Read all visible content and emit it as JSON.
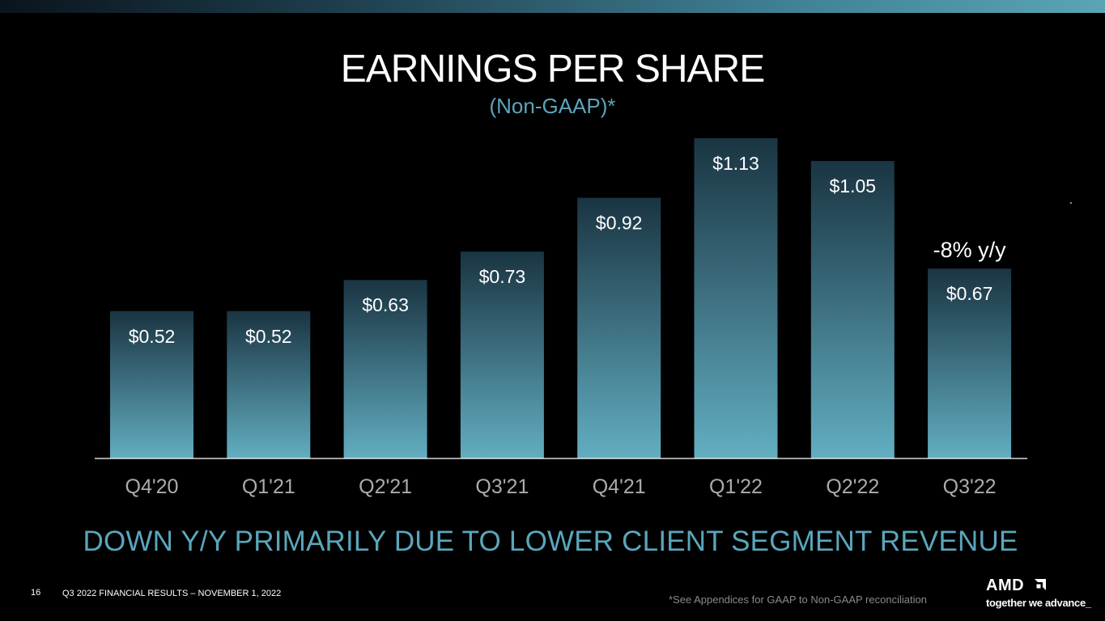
{
  "slide": {
    "title": "EARNINGS PER SHARE",
    "subtitle": "(Non-GAAP)*",
    "headline": "DOWN Y/Y PRIMARILY DUE TO LOWER CLIENT SEGMENT REVENUE",
    "page_number": "16",
    "footer": "Q3 2022 FINANCIAL RESULTS – NOVEMBER 1, 2022",
    "footnote": "*See Appendices for GAAP to Non-GAAP reconciliation"
  },
  "logo": {
    "wordmark": "AMD",
    "tagline": "together we advance_",
    "icon": "amd-arrow-icon"
  },
  "colors": {
    "accent": "#5aa6bc",
    "bar_top": "#1a3442",
    "bar_bottom": "#62aec1",
    "background": "#000000"
  },
  "chart_data": {
    "type": "bar",
    "title": "EARNINGS PER SHARE",
    "subtitle": "(Non-GAAP)*",
    "categories": [
      "Q4'20",
      "Q1'21",
      "Q2'21",
      "Q3'21",
      "Q4'21",
      "Q1'22",
      "Q2'22",
      "Q3'22"
    ],
    "values": [
      0.52,
      0.52,
      0.63,
      0.73,
      0.92,
      1.13,
      1.05,
      0.67
    ],
    "value_labels": [
      "$0.52",
      "$0.52",
      "$0.63",
      "$0.73",
      "$0.92",
      "$1.13",
      "$1.05",
      "$0.67"
    ],
    "ylim": [
      0,
      1.13
    ],
    "xlabel": "",
    "ylabel": "",
    "grid": false,
    "annotations": [
      {
        "category": "Q3'22",
        "text": "-8% y/y"
      }
    ]
  }
}
